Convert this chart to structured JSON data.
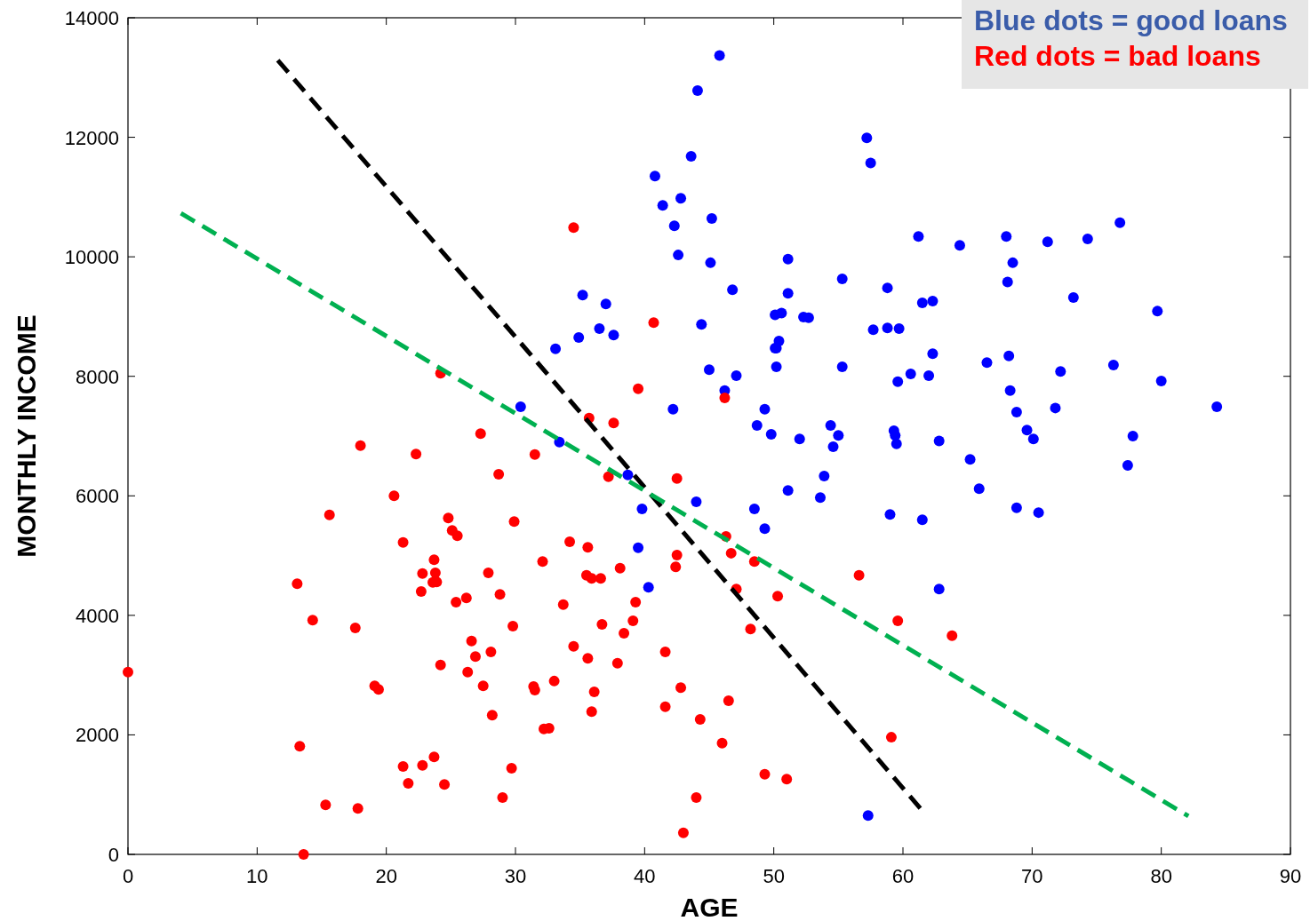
{
  "chart_data": {
    "type": "scatter",
    "xlabel": "AGE",
    "ylabel": "MONTHLY INCOME",
    "xlim": [
      0,
      90
    ],
    "ylim": [
      0,
      14000
    ],
    "xticks": [
      0,
      10,
      20,
      30,
      40,
      50,
      60,
      70,
      80,
      90
    ],
    "yticks": [
      0,
      2000,
      4000,
      6000,
      8000,
      10000,
      12000,
      14000
    ],
    "marker": "circle",
    "grid": false,
    "annotations": [
      "Blue dots = good loans",
      "Red dots = bad loans"
    ],
    "series": [
      {
        "color": "#0000ff",
        "x": [
          45.8,
          44.1,
          43.6,
          57.2,
          57.5,
          40.8,
          42.8,
          41.4,
          45.2,
          42.3,
          76.8,
          61.2,
          64.4,
          68.0,
          71.2,
          74.3,
          42.6,
          51.1,
          45.1,
          68.5,
          46.8,
          55.3,
          68.1,
          35.2,
          37.0,
          51.1,
          58.8,
          61.5,
          62.3,
          73.2,
          79.7,
          50.1,
          50.6,
          52.3,
          52.7,
          44.4,
          36.5,
          37.6,
          33.1,
          34.9,
          50.4,
          50.2,
          50.1,
          57.7,
          58.8,
          59.7,
          62.3,
          68.2,
          45.0,
          47.1,
          50.2,
          55.3,
          60.6,
          62.0,
          66.5,
          59.6,
          72.2,
          76.3,
          80.0,
          46.2,
          68.3,
          30.4,
          42.2,
          49.3,
          68.8,
          71.8,
          84.3,
          48.7,
          49.8,
          54.4,
          55.0,
          54.6,
          59.3,
          59.4,
          59.5,
          62.8,
          69.6,
          70.1,
          77.8,
          33.4,
          52.0,
          77.4,
          65.2,
          38.7,
          53.9,
          51.1,
          65.9,
          53.6,
          44.0,
          39.8,
          48.5,
          68.8,
          70.5,
          59.0,
          61.5,
          49.3,
          39.5,
          40.3,
          62.8,
          57.3
        ],
        "values": [
          13370,
          12780,
          11680,
          11990,
          11570,
          11350,
          10980,
          10860,
          10640,
          10520,
          10570,
          10340,
          10190,
          10340,
          10250,
          10300,
          10030,
          9960,
          9900,
          9900,
          9450,
          9630,
          9580,
          9360,
          9210,
          9390,
          9480,
          9230,
          9260,
          9320,
          9090,
          9030,
          9060,
          8990,
          8980,
          8870,
          8800,
          8690,
          8460,
          8650,
          8590,
          8470,
          8470,
          8780,
          8810,
          8800,
          8380,
          8340,
          8110,
          8010,
          8160,
          8160,
          8040,
          8010,
          8230,
          7910,
          8080,
          8190,
          7920,
          7760,
          7760,
          7490,
          7450,
          7450,
          7400,
          7470,
          7490,
          7180,
          7030,
          7180,
          7010,
          6820,
          7090,
          7010,
          6870,
          6920,
          7100,
          6950,
          7000,
          6900,
          6950,
          6510,
          6610,
          6350,
          6330,
          6090,
          6120,
          5970,
          5900,
          5780,
          5780,
          5800,
          5720,
          5690,
          5600,
          5450,
          5130,
          4470,
          4440,
          650
        ]
      },
      {
        "color": "#ff0000",
        "x": [
          34.5,
          40.7,
          24.2,
          46.2,
          39.5,
          35.7,
          37.6,
          27.3,
          18.0,
          22.3,
          31.5,
          28.7,
          37.2,
          42.5,
          20.6,
          15.6,
          29.9,
          24.8,
          25.1,
          25.5,
          34.2,
          35.6,
          46.3,
          21.3,
          32.1,
          23.7,
          46.7,
          42.5,
          48.5,
          22.8,
          23.8,
          27.9,
          38.1,
          42.4,
          35.5,
          35.9,
          36.6,
          23.6,
          23.9,
          56.6,
          13.1,
          22.7,
          28.8,
          50.3,
          47.1,
          26.2,
          25.4,
          39.3,
          33.7,
          14.3,
          39.1,
          59.6,
          36.7,
          29.8,
          17.6,
          48.2,
          38.4,
          63.8,
          26.6,
          34.5,
          28.1,
          41.6,
          26.9,
          35.6,
          24.2,
          37.9,
          0,
          26.3,
          33.0,
          19.1,
          19.4,
          27.5,
          31.4,
          31.5,
          42.8,
          36.1,
          46.5,
          41.6,
          35.9,
          28.2,
          44.3,
          32.6,
          32.2,
          59.1,
          13.3,
          46.0,
          23.7,
          21.3,
          22.8,
          29.7,
          49.3,
          51.0,
          21.7,
          24.5,
          29.0,
          44.0,
          15.3,
          17.8,
          43.0,
          13.6
        ],
        "values": [
          10490,
          8900,
          8050,
          7640,
          7790,
          7300,
          7220,
          7040,
          6840,
          6700,
          6690,
          6360,
          6320,
          6290,
          6000,
          5680,
          5570,
          5630,
          5420,
          5330,
          5230,
          5140,
          5320,
          5220,
          4900,
          4930,
          5040,
          5010,
          4900,
          4700,
          4710,
          4710,
          4790,
          4810,
          4670,
          4620,
          4620,
          4550,
          4560,
          4670,
          4530,
          4400,
          4350,
          4320,
          4440,
          4290,
          4220,
          4220,
          4180,
          3920,
          3910,
          3910,
          3850,
          3820,
          3790,
          3770,
          3700,
          3660,
          3570,
          3480,
          3390,
          3390,
          3310,
          3280,
          3170,
          3200,
          3050,
          3050,
          2900,
          2820,
          2760,
          2820,
          2810,
          2750,
          2790,
          2720,
          2570,
          2470,
          2390,
          2330,
          2260,
          2110,
          2100,
          1960,
          1810,
          1860,
          1630,
          1470,
          1490,
          1440,
          1340,
          1260,
          1190,
          1170,
          950,
          950,
          830,
          770,
          360,
          0
        ]
      },
      {
        "type": "line",
        "color": "#000000",
        "line_style": "dashed",
        "marker": "none",
        "x": [
          11.6,
          61.7
        ],
        "values": [
          13290,
          680
        ]
      },
      {
        "type": "line",
        "color": "#00b050",
        "line_style": "dashed",
        "marker": "none",
        "x": [
          4.1,
          82.1
        ],
        "values": [
          10730,
          640
        ]
      }
    ]
  }
}
